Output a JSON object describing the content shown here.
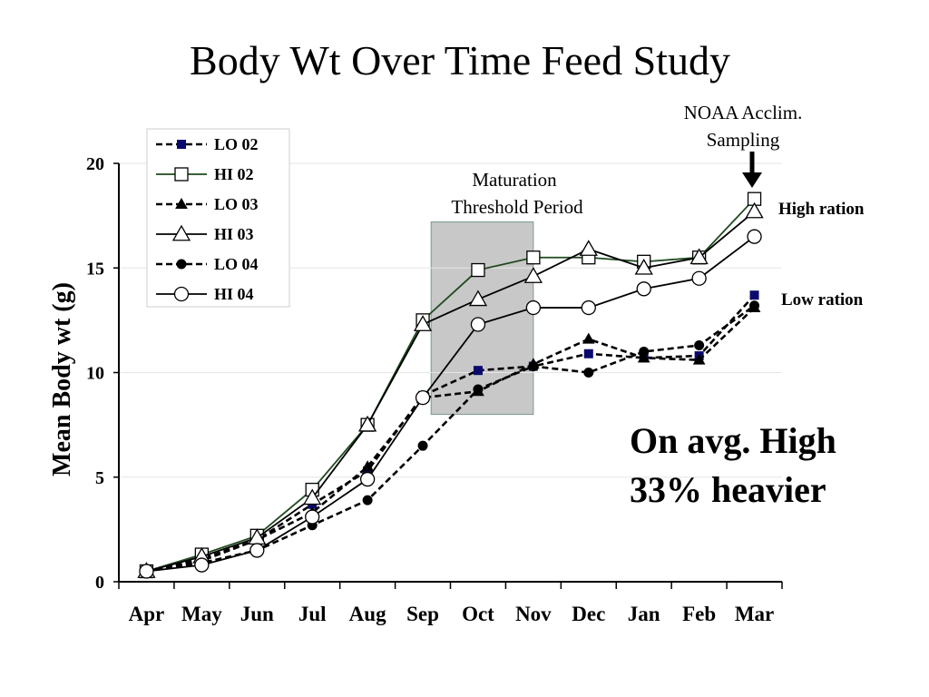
{
  "chart_data": {
    "type": "line",
    "title": "Body Wt Over Time Feed Study",
    "xlabel": "",
    "ylabel": "Mean Body wt (g)",
    "categories": [
      "Apr",
      "May",
      "Jun",
      "Jul",
      "Aug",
      "Sep",
      "Oct",
      "Nov",
      "Dec",
      "Jan",
      "Feb",
      "Mar"
    ],
    "yticks": [
      0,
      5,
      10,
      15,
      20
    ],
    "ylim": [
      0,
      20
    ],
    "grid": true,
    "legend_position": "top-left",
    "series": [
      {
        "name": "LO 02",
        "marker": "square-filled",
        "dash": "dashed",
        "color": "#000000",
        "marker_color": "#0a0a6e",
        "values": [
          0.5,
          1.1,
          2.0,
          3.7,
          5.3,
          8.9,
          10.1,
          10.3,
          10.9,
          10.7,
          10.8,
          13.7
        ]
      },
      {
        "name": "HI 02",
        "marker": "square-open",
        "dash": "solid",
        "color": "#1f4a1f",
        "marker_color": "#000000",
        "values": [
          0.5,
          1.3,
          2.2,
          4.4,
          7.5,
          12.5,
          14.9,
          15.5,
          15.5,
          15.3,
          15.5,
          18.3
        ]
      },
      {
        "name": "LO 03",
        "marker": "triangle-filled",
        "dash": "dashed",
        "color": "#000000",
        "marker_color": "#000000",
        "values": [
          0.5,
          1.0,
          2.0,
          3.3,
          5.5,
          8.8,
          9.1,
          10.4,
          11.6,
          10.7,
          10.6,
          13.1
        ]
      },
      {
        "name": "HI 03",
        "marker": "triangle-open",
        "dash": "solid",
        "color": "#000000",
        "marker_color": "#000000",
        "values": [
          0.5,
          1.2,
          2.1,
          4.0,
          7.5,
          12.3,
          13.5,
          14.6,
          15.9,
          15.0,
          15.5,
          17.7
        ]
      },
      {
        "name": "LO 04",
        "marker": "circle-filled",
        "dash": "dashed",
        "color": "#000000",
        "marker_color": "#000000",
        "values": [
          0.5,
          0.9,
          1.5,
          2.7,
          3.9,
          6.5,
          9.2,
          10.3,
          10.0,
          11.0,
          11.3,
          13.2
        ]
      },
      {
        "name": "HI 04",
        "marker": "circle-open",
        "dash": "solid",
        "color": "#000000",
        "marker_color": "#000000",
        "values": [
          0.5,
          0.8,
          1.5,
          3.1,
          4.9,
          8.8,
          12.3,
          13.1,
          13.1,
          14.0,
          14.5,
          16.5
        ]
      }
    ],
    "shaded_region": {
      "label_line1": "Maturation",
      "label_line2": "Threshold Period",
      "x_start_index": 5.65,
      "x_end_index": 7.5,
      "y_start": 8.0,
      "y_end": 17.2,
      "fill": "#c8c8c8"
    },
    "annotations": {
      "arrow_label_line1": "NOAA Acclim.",
      "arrow_label_line2": "Sampling",
      "high_ration": "High ration",
      "low_ration": "Low ration",
      "note_line1": "On avg. High",
      "note_line2": "33% heavier"
    }
  }
}
